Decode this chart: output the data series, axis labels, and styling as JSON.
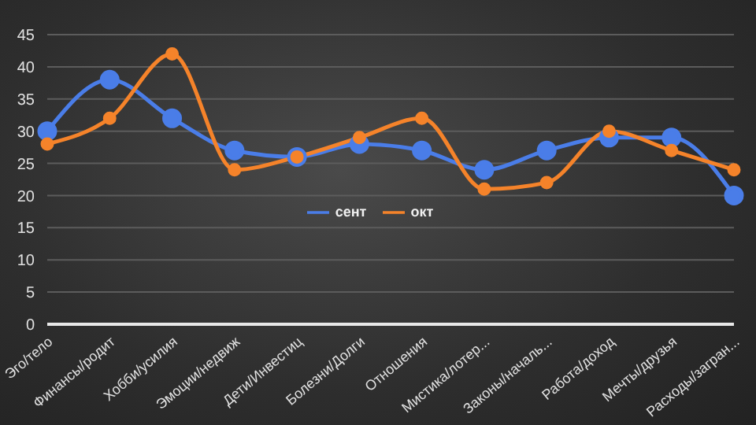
{
  "chart_data": {
    "type": "line",
    "categories": [
      "Эго/тело",
      "Финансы/родит",
      "Хобби/усилия",
      "Эмоции/недвиж",
      "Дети/Инвестиц",
      "Болезни/Долги",
      "Отношения",
      "Мистика/лотер...",
      "Законы/началь...",
      "Работа/доход",
      "Мечты/друзья",
      "Расходы/загран..."
    ],
    "series": [
      {
        "name": "сент",
        "color": "#4a7de8",
        "values": [
          30,
          38,
          32,
          27,
          26,
          28,
          27,
          24,
          27,
          29,
          29,
          20
        ]
      },
      {
        "name": "окт",
        "color": "#f5832a",
        "values": [
          28,
          32,
          42,
          24,
          26,
          29,
          32,
          21,
          22,
          30,
          27,
          24
        ]
      }
    ],
    "ylim": [
      0,
      45
    ],
    "yticks": [
      0,
      5,
      10,
      15,
      20,
      25,
      30,
      35,
      40,
      45
    ],
    "grid": "y",
    "legend": "center",
    "marker": "circle",
    "line_style": "solid"
  }
}
